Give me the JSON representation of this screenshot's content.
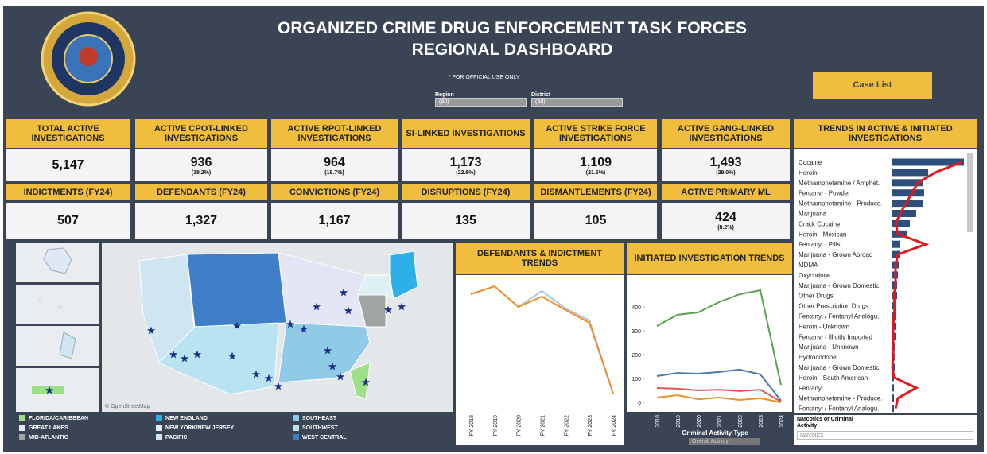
{
  "header": {
    "title": [
      "ORGANIZED CRIME DRUG ENFORCEMENT TASK FORCES",
      "REGIONAL DASHBOARD"
    ],
    "notice": "* FOR OFFICIAL USE ONLY",
    "filters": [
      {
        "label": "Region",
        "value": "(All)"
      },
      {
        "label": "District",
        "value": "(All)"
      }
    ],
    "button": "Case List"
  },
  "kpis": [
    {
      "label": "TOTAL ACTIVE INVESTIGATIONS",
      "value": "5,147"
    },
    {
      "label": "ACTIVE CPOT-LINKED INVESTIGATIONS",
      "value": "936",
      "pct": "(18.2%)"
    },
    {
      "label": "ACTIVE RPOT-LINKED INVESTIGATIONS",
      "value": "964",
      "pct": "(18.7%)"
    },
    {
      "label": "SI-LINKED INVESTIGATIONS",
      "value": "1,173",
      "pct": "(22.8%)"
    },
    {
      "label": "ACTIVE STRIKE FORCE INVESTIGATIONS",
      "value": "1,109",
      "pct": "(21.5%)"
    },
    {
      "label": "ACTIVE GANG-LINKED INVESTIGATIONS",
      "value": "1,493",
      "pct": "(29.0%)"
    },
    {
      "label": "INDICTMENTS (FY24)",
      "value": "507"
    },
    {
      "label": "DEFENDANTS (FY24)",
      "value": "1,327"
    },
    {
      "label": "CONVICTIONS (FY24)",
      "value": "1,167"
    },
    {
      "label": "DISRUPTIONS (FY24)",
      "value": "135"
    },
    {
      "label": "DISMANTLEMENTS (FY24)",
      "value": "105"
    },
    {
      "label": "ACTIVE PRIMARY ML",
      "value": "424",
      "pct": "(8.2%)"
    }
  ],
  "map": {
    "attribution": "© OpenStreetMap",
    "legend": [
      {
        "name": "FLORIDA/CARIBBEAN",
        "color": "#9de089"
      },
      {
        "name": "GREAT LAKES",
        "color": "#e4e6f6"
      },
      {
        "name": "MID-ATLANTIC",
        "color": "#9fa5a2"
      },
      {
        "name": "NEW ENGLAND",
        "color": "#2bb0e8"
      },
      {
        "name": "NEW YORK/NEW JERSEY",
        "color": "#dff0f5"
      },
      {
        "name": "PACIFIC",
        "color": "#cfe6f2"
      },
      {
        "name": "SOUTHEAST",
        "color": "#8fcbe6"
      },
      {
        "name": "SOUTHWEST",
        "color": "#b9e3f0"
      },
      {
        "name": "WEST CENTRAL",
        "color": "#3f7fc9"
      }
    ]
  },
  "controls": {
    "criminal_activity": {
      "label": "Criminal Activity Type",
      "value": "Overall Activity"
    },
    "narcotics": {
      "label": "Narcotics or Criminal Activity",
      "value": "Narcotics"
    }
  },
  "chart_data": [
    {
      "type": "bar",
      "title": "TRENDS IN ACTIVE & INITIATED INVESTIGATIONS",
      "categories": [
        "Cocaine",
        "Heroin",
        "Methamphetamine / Amphet.",
        "Fentanyl - Powder",
        "Methamphetamine - Produce.",
        "Marijuana",
        "Crack Cocaine",
        "Heroin - Mexican",
        "Fentanyl - Pills",
        "Marijuana - Grown Abroad",
        "MDMA",
        "Oxycodone",
        "Marijuana - Grown Domestic.",
        "Other Drugs",
        "Other Prescription Drugs",
        "Fentanyl / Fentanyl Analogu.",
        "Heroin - Unknown",
        "Fentanyl - Illicitly Imported",
        "Marijuana - Unknown",
        "Hydrocodone",
        "Marijuana - Grown Domestic.",
        "Heroin - South American",
        "Fentanyl",
        "Methamphetamine - Produce.",
        "Fentanyl / Fentanyl Analogu."
      ],
      "series": [
        {
          "color": "#2e4f7c",
          "values": [
            90,
            45,
            38,
            40,
            38,
            30,
            22,
            18,
            10,
            9,
            8,
            7,
            6,
            6,
            5,
            5,
            4,
            4,
            3,
            3,
            3,
            2,
            2,
            2,
            2
          ]
        },
        {
          "color": "#e3171c",
          "type": "line",
          "values": [
            87,
            54,
            32,
            25,
            17,
            10,
            4,
            7,
            42,
            7,
            4,
            4,
            4,
            2,
            3,
            2,
            1,
            1,
            1,
            1,
            0,
            2,
            30,
            7,
            4
          ]
        }
      ]
    },
    {
      "type": "line",
      "title": "DEFENDANTS & INDICTMENT TRENDS",
      "categories": [
        "FY 2018",
        "FY 2019",
        "FY 2020",
        "FY 2021",
        "FY 2022",
        "FY 2023",
        "FY 2024"
      ],
      "series": [
        {
          "color": "#a9c6e0",
          "values": [
            1380,
            1480,
            1220,
            1420,
            1200,
            1050,
            130
          ]
        },
        {
          "color": "#f28e2b",
          "values": [
            1380,
            1480,
            1220,
            1350,
            1180,
            1020,
            130
          ]
        }
      ]
    },
    {
      "type": "line",
      "title": "INITIATED INVESTIGATION TRENDS",
      "categories": [
        "FY 2018",
        "FY 2019",
        "FY 2020",
        "FY 2021",
        "FY 2022",
        "FY 2023",
        "FY 2024"
      ],
      "ylim": [
        -20,
        470
      ],
      "yticks": [
        0,
        100,
        200,
        300,
        400
      ],
      "series": [
        {
          "color": "#59a14f",
          "values": [
            320,
            367,
            377,
            420,
            453,
            470,
            73
          ]
        },
        {
          "color": "#4e79a7",
          "values": [
            110,
            123,
            120,
            127,
            137,
            117,
            7
          ]
        },
        {
          "color": "#e15759",
          "values": [
            60,
            57,
            50,
            53,
            47,
            53,
            3
          ]
        },
        {
          "color": "#f28e2b",
          "values": [
            20,
            30,
            13,
            20,
            10,
            17,
            0
          ]
        }
      ]
    }
  ]
}
